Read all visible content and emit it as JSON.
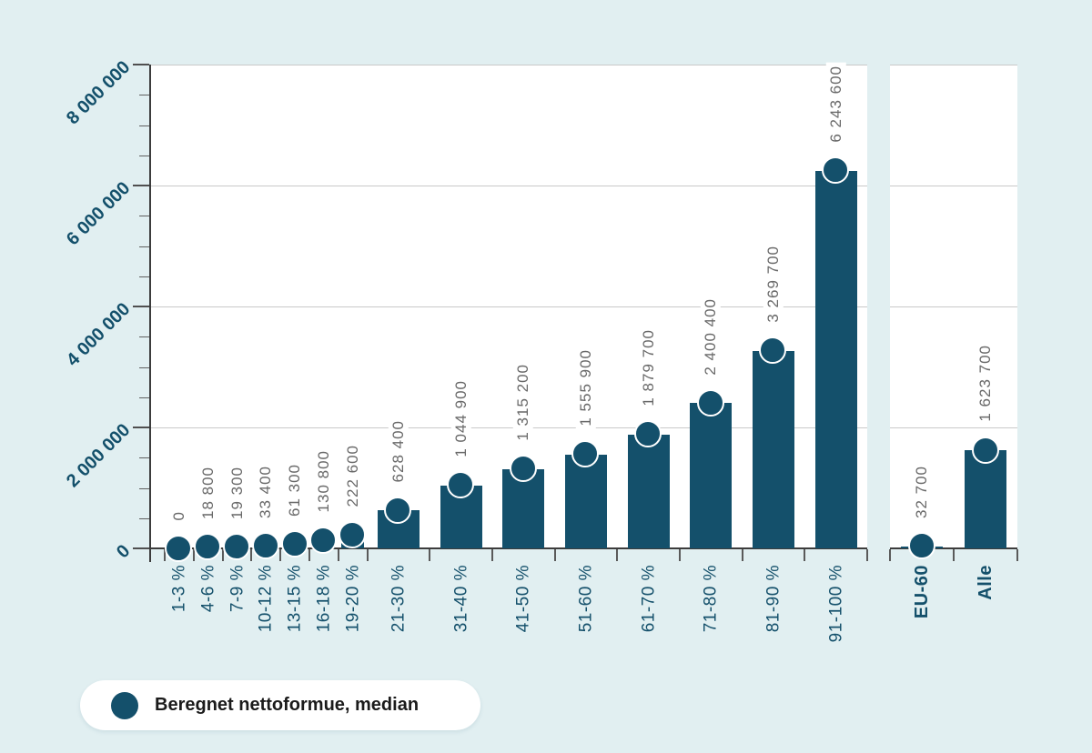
{
  "legend": {
    "label": "Beregnet nettoformue, median"
  },
  "colors": {
    "background": "#e1eff1",
    "plot_background": "#ffffff",
    "bar": "#14506b",
    "axis_label": "#14506b",
    "value_label": "#696969",
    "gridline": "#c9c9c9",
    "axis_line": "#3c3c3c",
    "legend_text": "#1b1b1b"
  },
  "chart_data": {
    "type": "bar",
    "series_name": "Beregnet nettoformue, median",
    "marker": "circle",
    "legend_position": "bottom-left",
    "grid": "horizontal-major",
    "ylim": [
      0,
      8000000
    ],
    "y_axis": {
      "major_ticks": [
        0,
        2000000,
        4000000,
        6000000,
        8000000
      ],
      "major_tick_labels": [
        "0",
        "2 000 000",
        "4 000 000",
        "6 000 000",
        "8 000 000"
      ],
      "minor_tick_step": 500000
    },
    "panels": [
      {
        "name": "percentile-groups",
        "categories": [
          "1-3 %",
          "4-6 %",
          "7-9 %",
          "10-12 %",
          "13-15 %",
          "16-18 %",
          "19-20 %",
          "21-30 %",
          "31-40 %",
          "41-50 %",
          "51-60 %",
          "61-70 %",
          "71-80 %",
          "81-90 %",
          "91-100 %"
        ],
        "values": [
          0,
          18800,
          19300,
          33400,
          61300,
          130800,
          222600,
          628400,
          1044900,
          1315200,
          1555900,
          1879700,
          2400400,
          3269700,
          6243600
        ],
        "value_labels": [
          "0",
          "18 800",
          "19 300",
          "33 400",
          "61 300",
          "130 800",
          "222 600",
          "628 400",
          "1 044 900",
          "1 315 200",
          "1 555 900",
          "1 879 700",
          "2 400 400",
          "3 269 700",
          "6 243 600"
        ],
        "bold_category_labels": false
      },
      {
        "name": "summary-groups",
        "categories": [
          "EU-60",
          "Alle"
        ],
        "values": [
          32700,
          1623700
        ],
        "value_labels": [
          "32 700",
          "1 623 700"
        ],
        "bold_category_labels": true
      }
    ]
  }
}
